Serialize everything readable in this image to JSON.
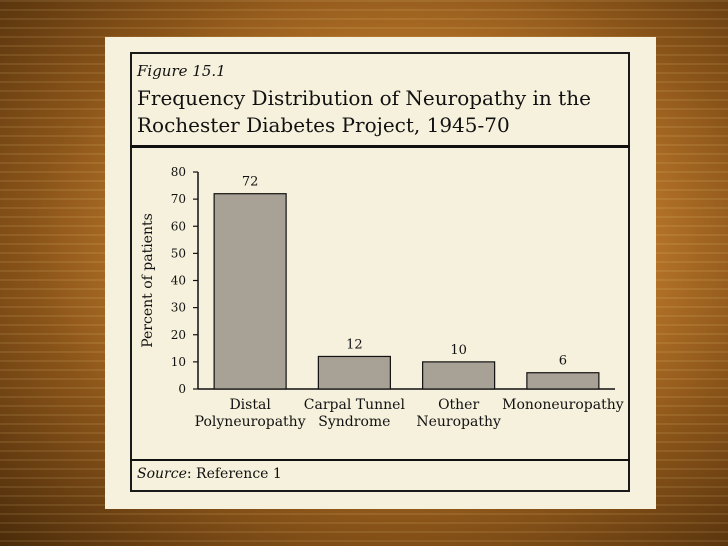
{
  "figure_label": "Figure 15.1",
  "title": "Frequency Distribution of Neuropathy in the Rochester Diabetes Project, 1945-70",
  "source": {
    "label": "Source",
    "text": ": Reference 1"
  },
  "colors": {
    "bar_fill": "#a8a196",
    "panel_bg": "#f6f1dc"
  },
  "chart_data": {
    "type": "bar",
    "categories": [
      [
        "Distal",
        "Polyneuropathy"
      ],
      [
        "Carpal Tunnel",
        "Syndrome"
      ],
      [
        "Other",
        "Neuropathy"
      ],
      [
        "Mononeuropathy"
      ]
    ],
    "values": [
      72,
      12,
      10,
      6
    ],
    "data_labels": [
      "72",
      "12",
      "10",
      "6"
    ],
    "ylabel": "Percent of patients",
    "ylim": [
      0,
      80
    ],
    "yticks": [
      0,
      10,
      20,
      30,
      40,
      50,
      60,
      70,
      80
    ],
    "grid": false
  }
}
